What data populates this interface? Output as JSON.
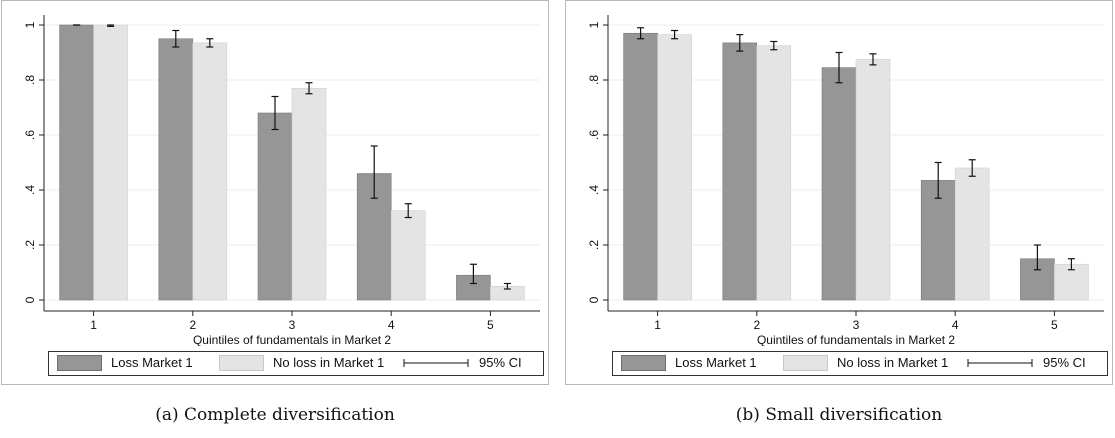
{
  "figure": {
    "captions": [
      "(a) Complete diversification",
      "(b) Small diversification"
    ]
  },
  "chart_data": [
    {
      "type": "bar",
      "categories": [
        "1",
        "2",
        "3",
        "4",
        "5"
      ],
      "xlabel": "Quintiles of fundamentals in Market 2",
      "ylabel": "",
      "ylim": [
        0,
        1
      ],
      "yticks": [
        0,
        0.2,
        0.4,
        0.6,
        0.8,
        1
      ],
      "ytick_labels": [
        "0",
        ".2",
        ".4",
        ".6",
        ".8",
        "1"
      ],
      "grid": true,
      "legend_position": "bottom",
      "colors": [
        "#969696",
        "#e4e4e4"
      ],
      "series": [
        {
          "name": "Loss Market 1",
          "values": [
            1.0,
            0.95,
            0.68,
            0.46,
            0.09
          ],
          "ci_low": [
            1.0,
            0.92,
            0.62,
            0.37,
            0.06
          ],
          "ci_high": [
            1.0,
            0.98,
            0.74,
            0.56,
            0.13
          ]
        },
        {
          "name": "No loss in Market 1",
          "values": [
            1.0,
            0.935,
            0.77,
            0.325,
            0.05
          ],
          "ci_low": [
            0.995,
            0.92,
            0.75,
            0.3,
            0.04
          ],
          "ci_high": [
            1.0,
            0.95,
            0.79,
            0.35,
            0.06
          ]
        }
      ],
      "ci_legend_label": "95% CI"
    },
    {
      "type": "bar",
      "categories": [
        "1",
        "2",
        "3",
        "4",
        "5"
      ],
      "xlabel": "Quintiles of fundamentals in Market 2",
      "ylabel": "",
      "ylim": [
        0,
        1
      ],
      "yticks": [
        0,
        0.2,
        0.4,
        0.6,
        0.8,
        1
      ],
      "ytick_labels": [
        "0",
        ".2",
        ".4",
        ".6",
        ".8",
        "1"
      ],
      "grid": true,
      "legend_position": "bottom",
      "colors": [
        "#969696",
        "#e4e4e4"
      ],
      "series": [
        {
          "name": "Loss Market 1",
          "values": [
            0.97,
            0.935,
            0.845,
            0.435,
            0.15
          ],
          "ci_low": [
            0.95,
            0.905,
            0.79,
            0.37,
            0.11
          ],
          "ci_high": [
            0.99,
            0.965,
            0.9,
            0.5,
            0.2
          ]
        },
        {
          "name": "No loss in Market 1",
          "values": [
            0.965,
            0.925,
            0.875,
            0.48,
            0.13
          ],
          "ci_low": [
            0.95,
            0.91,
            0.855,
            0.45,
            0.11
          ],
          "ci_high": [
            0.98,
            0.94,
            0.895,
            0.51,
            0.15
          ]
        }
      ],
      "ci_legend_label": "95% CI"
    }
  ]
}
